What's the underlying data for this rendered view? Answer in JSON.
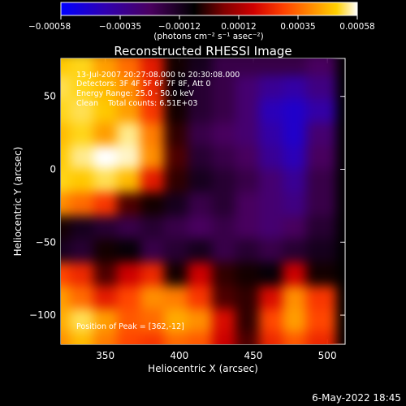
{
  "chart_data": {
    "type": "heatmap",
    "title": "Reconstructed RHESSI Image",
    "xlabel": "Heliocentric X (arcsec)",
    "ylabel": "Heliocentric Y (arcsec)",
    "xlim": [
      320,
      512
    ],
    "ylim": [
      -120,
      76
    ],
    "x_ticks": [
      350,
      400,
      450,
      500
    ],
    "y_ticks": [
      -100,
      -50,
      0,
      50
    ],
    "x_tick_labels": [
      "350",
      "400",
      "450",
      "500"
    ],
    "y_tick_labels": [
      "−100",
      "−50",
      "0",
      "50"
    ],
    "colorbar": {
      "range": [
        -0.00058,
        0.00058
      ],
      "tick_labels": [
        "−0.00058",
        "−0.00035",
        "−0.00012",
        "0.00012",
        "0.00035",
        "0.00058"
      ],
      "unit_label": "(photons cm⁻² s⁻¹ asec⁻²)",
      "colormap": [
        "#0000ff",
        "#3000b0",
        "#4a0060",
        "#000000",
        "#800000",
        "#d00000",
        "#ff4000",
        "#ff9000",
        "#ffd000",
        "#ffffff"
      ]
    },
    "annotations": {
      "time_range": "13-Jul-2007 20:27:08.000 to 20:30:08.000",
      "detectors": "Detectors: 3F 4F 5F 6F 7F 8F, Att 0",
      "energy_range": "Energy Range: 25.0 - 50.0 keV",
      "clean_counts": "Clean    Total counts: 6.51E+03",
      "peak_position": "Position of Peak = [362,-12]"
    },
    "intensity_grid": {
      "x_start": 320,
      "x_step": 16,
      "y_start": 70,
      "y_step": -16,
      "rows": [
        [
          0.75,
          0.8,
          0.6,
          0.45,
          0.2,
          -0.3,
          -0.4,
          -0.5,
          -0.5,
          -0.5,
          -0.5,
          -0.55
        ],
        [
          0.85,
          0.8,
          0.7,
          0.55,
          0.25,
          -0.35,
          -0.45,
          -0.5,
          -0.6,
          -0.7,
          -0.75,
          -0.65
        ],
        [
          0.8,
          0.85,
          0.75,
          0.6,
          0.3,
          -0.3,
          -0.45,
          -0.5,
          -0.6,
          -0.8,
          -0.85,
          -0.75
        ],
        [
          0.7,
          0.8,
          0.6,
          0.9,
          0.5,
          -0.25,
          -0.5,
          -0.55,
          -0.6,
          -0.75,
          -0.85,
          -0.6
        ],
        [
          0.75,
          0.9,
          1.0,
          0.95,
          0.55,
          -0.2,
          -0.45,
          -0.5,
          -0.55,
          -0.7,
          -0.8,
          -0.55
        ],
        [
          0.8,
          0.75,
          0.85,
          0.7,
          0.2,
          -0.25,
          -0.4,
          -0.45,
          -0.5,
          -0.6,
          -0.7,
          -0.5
        ],
        [
          0.55,
          0.45,
          0.3,
          -0.2,
          -0.3,
          -0.4,
          -0.5,
          -0.45,
          -0.55,
          -0.6,
          -0.65,
          -0.5
        ],
        [
          -0.3,
          -0.4,
          -0.45,
          -0.5,
          -0.45,
          -0.5,
          -0.55,
          -0.5,
          -0.55,
          -0.6,
          -0.55,
          -0.45
        ],
        [
          -0.4,
          -0.45,
          -0.3,
          -0.35,
          -0.5,
          -0.45,
          -0.4,
          -0.5,
          -0.45,
          -0.5,
          -0.45,
          -0.4
        ],
        [
          0.35,
          0.25,
          -0.2,
          0.1,
          0.25,
          -0.3,
          0.1,
          -0.25,
          -0.3,
          -0.35,
          0.1,
          -0.3
        ],
        [
          0.6,
          0.45,
          0.2,
          0.35,
          0.55,
          0.5,
          0.3,
          -0.2,
          -0.25,
          0.15,
          0.55,
          0.3
        ],
        [
          0.65,
          0.85,
          0.6,
          0.4,
          0.45,
          0.65,
          0.55,
          0.15,
          -0.25,
          0.35,
          0.6,
          0.35
        ],
        [
          0.55,
          0.7,
          0.5,
          0.35,
          0.3,
          0.45,
          0.4,
          0.1,
          -0.2,
          0.25,
          0.4,
          0.25
        ]
      ]
    }
  },
  "footer": {
    "date": "6-May-2022 18:45"
  }
}
